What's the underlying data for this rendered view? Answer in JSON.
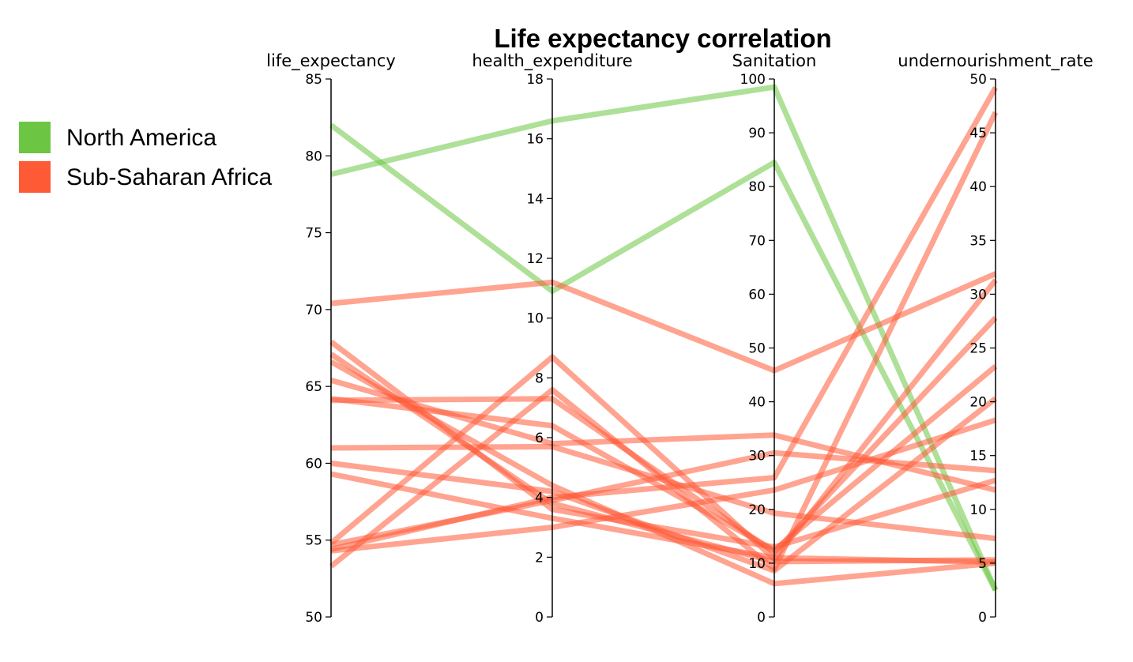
{
  "chart_data": {
    "type": "parallel-coordinates",
    "title": "Life expectancy correlation",
    "dimensions": [
      {
        "name": "life_expectancy",
        "range": [
          50,
          85
        ],
        "ticks": [
          50,
          55,
          60,
          65,
          70,
          75,
          80,
          85
        ]
      },
      {
        "name": "health_expenditure",
        "range": [
          0,
          18
        ],
        "ticks": [
          0,
          2,
          4,
          6,
          8,
          10,
          12,
          14,
          16,
          18
        ]
      },
      {
        "name": "Sanitation",
        "range": [
          0,
          100
        ],
        "ticks": [
          0,
          10,
          20,
          30,
          40,
          50,
          60,
          70,
          80,
          90,
          100
        ]
      },
      {
        "name": "undernourishment_rate",
        "range": [
          0,
          50
        ],
        "ticks": [
          0,
          5,
          10,
          15,
          20,
          25,
          30,
          35,
          40,
          45,
          50
        ]
      }
    ],
    "legend": {
      "placement": "left",
      "items": [
        {
          "name": "North America",
          "color": "#6cc644"
        },
        {
          "name": "Sub-Saharan Africa",
          "color": "#ff5a36"
        }
      ]
    },
    "series": [
      {
        "group": "North America",
        "values": [
          78.8,
          16.6,
          98.5,
          2.5
        ]
      },
      {
        "group": "North America",
        "values": [
          82.0,
          10.9,
          84.5,
          2.5
        ]
      },
      {
        "group": "Sub-Saharan Africa",
        "values": [
          70.4,
          11.2,
          45.8,
          31.9
        ]
      },
      {
        "group": "Sub-Saharan Africa",
        "values": [
          67.9,
          3.6,
          13.0,
          12.7
        ]
      },
      {
        "group": "Sub-Saharan Africa",
        "values": [
          67.1,
          3.8,
          10.3,
          5.3
        ]
      },
      {
        "group": "Sub-Saharan Africa",
        "values": [
          66.6,
          4.4,
          6.2,
          5.0
        ]
      },
      {
        "group": "Sub-Saharan Africa",
        "values": [
          65.4,
          5.8,
          33.8,
          11.8
        ]
      },
      {
        "group": "Sub-Saharan Africa",
        "values": [
          64.2,
          6.4,
          12.4,
          23.3
        ]
      },
      {
        "group": "Sub-Saharan Africa",
        "values": [
          61.0,
          5.7,
          19.3,
          7.3
        ]
      },
      {
        "group": "Sub-Saharan Africa",
        "values": [
          59.3,
          3.3,
          11.0,
          5.1
        ]
      },
      {
        "group": "Sub-Saharan Africa",
        "values": [
          54.8,
          8.7,
          10.8,
          31.3
        ]
      },
      {
        "group": "Sub-Saharan Africa",
        "values": [
          54.3,
          3.0,
          23.6,
          18.3
        ]
      },
      {
        "group": "Sub-Saharan Africa",
        "values": [
          54.4,
          4.0,
          25.9,
          49.2
        ]
      },
      {
        "group": "Sub-Saharan Africa",
        "values": [
          53.3,
          7.6,
          8.9,
          46.9
        ]
      },
      {
        "group": "Sub-Saharan Africa",
        "values": [
          64.1,
          7.3,
          12.0,
          27.8
        ]
      },
      {
        "group": "Sub-Saharan Africa",
        "values": [
          54.7,
          3.9,
          30.5,
          13.6
        ]
      },
      {
        "group": "Sub-Saharan Africa",
        "values": [
          60.0,
          4.2,
          8.6,
          20.3
        ]
      }
    ]
  }
}
